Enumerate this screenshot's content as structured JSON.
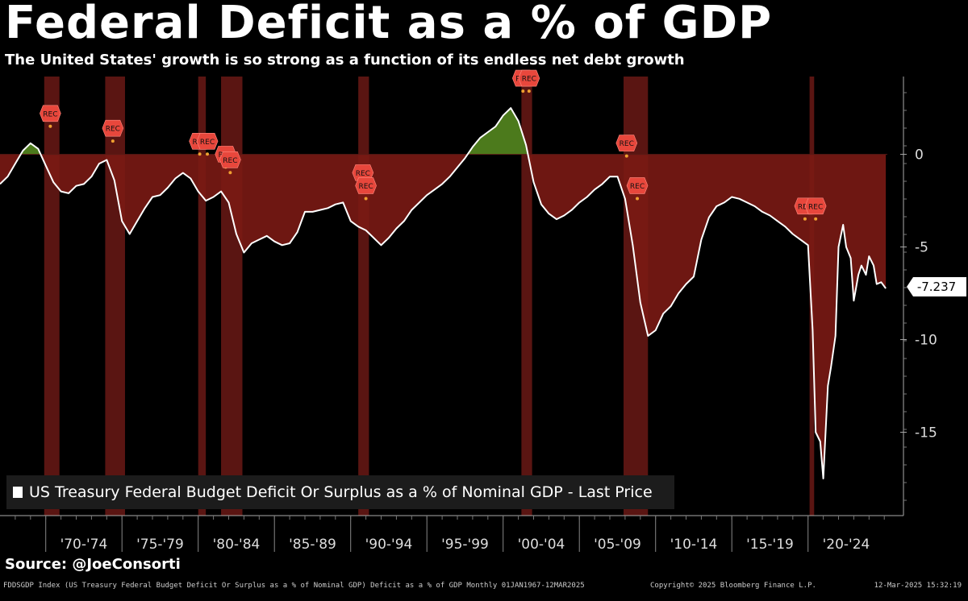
{
  "title": "Federal Deficit as a % of GDP",
  "subtitle": "The United States' growth is so strong as a function of its endless net debt growth",
  "source": "Source: @JoeConsorti",
  "footer": {
    "left": "FDDSGDP Index (US Treasury Federal Budget Deficit Or Surplus as a % of Nominal GDP) Deficit as a % of GDP  Monthly 01JAN1967-12MAR2025",
    "middle": "Copyright© 2025 Bloomberg Finance L.P.",
    "right": "12-Mar-2025 15:32:19"
  },
  "last_price_label": "-7.237",
  "recession_marker_label": "REC",
  "colors": {
    "background": "#000000",
    "line": "#ffffff",
    "deficit_fill": "#7a1a14",
    "surplus_fill": "#4c7a1c",
    "recession_band": "#5a1512",
    "marker": "#e8473c"
  },
  "chart_data": {
    "type": "area",
    "legend": [
      "US Treasury Federal Budget Deficit Or Surplus as a % of Nominal GDP - Last Price"
    ],
    "x_ticks": [
      "'70-'74",
      "'75-'79",
      "'80-'84",
      "'85-'89",
      "'90-'94",
      "'95-'99",
      "'00-'04",
      "'05-'09",
      "'10-'14",
      "'15-'19",
      "'20-'24"
    ],
    "y_ticks": [
      0,
      -5,
      -10,
      -15
    ],
    "xlim": [
      1967.0,
      2025.2
    ],
    "ylim": [
      -19.5,
      4.2
    ],
    "grid": false,
    "axis_position": "right",
    "legend_position": "bottom-left",
    "recessions": [
      [
        1969.9,
        1970.9
      ],
      [
        1973.9,
        1975.2
      ],
      [
        1980.0,
        1980.5
      ],
      [
        1981.5,
        1982.9
      ],
      [
        1990.5,
        1991.2
      ],
      [
        2001.2,
        2001.9
      ],
      [
        2007.9,
        2009.5
      ],
      [
        2020.1,
        2020.4
      ]
    ],
    "recession_markers": [
      {
        "x": 1970.3,
        "y": 1.6
      },
      {
        "x": 1974.4,
        "y": 0.8
      },
      {
        "x": 1980.1,
        "y": 0.1
      },
      {
        "x": 1980.6,
        "y": 0.1
      },
      {
        "x": 1981.8,
        "y": -0.6
      },
      {
        "x": 1982.1,
        "y": -0.9
      },
      {
        "x": 1990.8,
        "y": -1.6
      },
      {
        "x": 1991.0,
        "y": -2.3
      },
      {
        "x": 2001.3,
        "y": 3.5
      },
      {
        "x": 2001.7,
        "y": 3.5
      },
      {
        "x": 2008.1,
        "y": 0.0
      },
      {
        "x": 2008.8,
        "y": -2.3
      },
      {
        "x": 2019.8,
        "y": -3.4
      },
      {
        "x": 2020.5,
        "y": -3.4
      }
    ],
    "series": [
      {
        "x": [
          1967.0,
          1967.5,
          1968.0,
          1968.5,
          1969.0,
          1969.5,
          1970.0,
          1970.5,
          1971.0,
          1971.5,
          1972.0,
          1972.5,
          1973.0,
          1973.5,
          1974.0,
          1974.5,
          1975.0,
          1975.5,
          1976.0,
          1976.5,
          1977.0,
          1977.5,
          1978.0,
          1978.5,
          1979.0,
          1979.5,
          1980.0,
          1980.5,
          1981.0,
          1981.5,
          1982.0,
          1982.5,
          1983.0,
          1983.5,
          1984.0,
          1984.5,
          1985.0,
          1985.5,
          1986.0,
          1986.5,
          1987.0,
          1987.5,
          1988.0,
          1988.5,
          1989.0,
          1989.5,
          1990.0,
          1990.5,
          1991.0,
          1991.5,
          1992.0,
          1992.5,
          1993.0,
          1993.5,
          1994.0,
          1994.5,
          1995.0,
          1995.5,
          1996.0,
          1996.5,
          1997.0,
          1997.5,
          1998.0,
          1998.5,
          1999.0,
          1999.5,
          2000.0,
          2000.5,
          2001.0,
          2001.5,
          2002.0,
          2002.5,
          2003.0,
          2003.5,
          2004.0,
          2004.5,
          2005.0,
          2005.5,
          2006.0,
          2006.5,
          2007.0,
          2007.5,
          2008.0,
          2008.5,
          2009.0,
          2009.5,
          2010.0,
          2010.5,
          2011.0,
          2011.5,
          2012.0,
          2012.5,
          2013.0,
          2013.5,
          2014.0,
          2014.5,
          2015.0,
          2015.5,
          2016.0,
          2016.5,
          2017.0,
          2017.5,
          2018.0,
          2018.5,
          2019.0,
          2019.5,
          2020.0,
          2020.3,
          2020.5,
          2020.8,
          2021.0,
          2021.3,
          2021.5,
          2021.8,
          2022.0,
          2022.3,
          2022.5,
          2022.8,
          2023.0,
          2023.3,
          2023.5,
          2023.8,
          2024.0,
          2024.3,
          2024.5,
          2024.8,
          2025.1
        ],
        "y": [
          -1.6,
          -1.2,
          -0.5,
          0.2,
          0.6,
          0.3,
          -0.6,
          -1.5,
          -2.0,
          -2.1,
          -1.7,
          -1.6,
          -1.2,
          -0.5,
          -0.3,
          -1.4,
          -3.6,
          -4.3,
          -3.6,
          -2.9,
          -2.3,
          -2.2,
          -1.8,
          -1.3,
          -1.0,
          -1.3,
          -2.0,
          -2.5,
          -2.3,
          -2.0,
          -2.6,
          -4.3,
          -5.3,
          -4.8,
          -4.6,
          -4.4,
          -4.7,
          -4.9,
          -4.8,
          -4.2,
          -3.1,
          -3.1,
          -3.0,
          -2.9,
          -2.7,
          -2.6,
          -3.6,
          -3.9,
          -4.1,
          -4.5,
          -4.9,
          -4.5,
          -4.0,
          -3.6,
          -3.0,
          -2.6,
          -2.2,
          -1.9,
          -1.6,
          -1.2,
          -0.7,
          -0.2,
          0.4,
          0.9,
          1.2,
          1.5,
          2.1,
          2.5,
          1.8,
          0.5,
          -1.5,
          -2.7,
          -3.2,
          -3.5,
          -3.3,
          -3.0,
          -2.6,
          -2.3,
          -1.9,
          -1.6,
          -1.2,
          -1.2,
          -2.4,
          -4.9,
          -8.0,
          -9.8,
          -9.5,
          -8.6,
          -8.2,
          -7.5,
          -7.0,
          -6.6,
          -4.6,
          -3.4,
          -2.8,
          -2.6,
          -2.3,
          -2.4,
          -2.6,
          -2.8,
          -3.1,
          -3.3,
          -3.6,
          -3.9,
          -4.3,
          -4.6,
          -4.9,
          -9.5,
          -15.0,
          -15.5,
          -17.5,
          -12.5,
          -11.5,
          -9.8,
          -5.0,
          -3.8,
          -5.0,
          -5.6,
          -7.9,
          -6.5,
          -6.0,
          -6.5,
          -5.5,
          -6.0,
          -7.0,
          -6.9,
          -7.237
        ]
      }
    ]
  }
}
